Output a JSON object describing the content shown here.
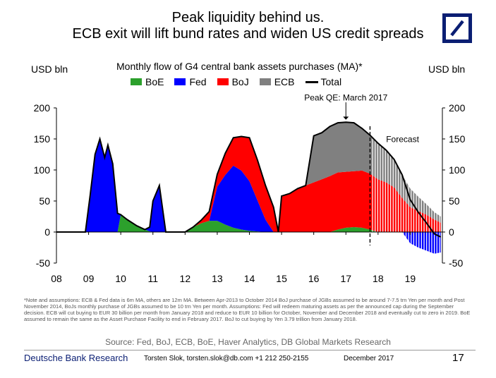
{
  "header": {
    "title_line1": "Peak liquidity behind us.",
    "title_line2": "ECB exit will lift bund rates and widen US credit spreads"
  },
  "brand": {
    "logo_color": "#0a1e73"
  },
  "chart_data": {
    "type": "area",
    "title": "Monthly flow of G4 central bank assets purchases (MA)*",
    "ylabel_left": "USD bln",
    "ylabel_right": "USD bln",
    "x_ticks": [
      "08",
      "09",
      "10",
      "11",
      "12",
      "13",
      "14",
      "15",
      "16",
      "17",
      "18",
      "19"
    ],
    "ylim": [
      -50,
      200
    ],
    "y_ticks": [
      200,
      150,
      100,
      50,
      0,
      -50
    ],
    "legend_placement": "top",
    "colors": {
      "BoE": "#2ca02c",
      "Fed": "#0000ff",
      "BoJ": "#ff0000",
      "ECB": "#808080",
      "Total": "#000000"
    },
    "x": [
      2008.0,
      2008.5,
      2008.9,
      2009.05,
      2009.2,
      2009.35,
      2009.5,
      2009.6,
      2009.75,
      2009.9,
      2010.0,
      2010.05,
      2010.2,
      2010.5,
      2010.75,
      2010.9,
      2011.0,
      2011.2,
      2011.4,
      2011.5,
      2011.55,
      2011.6,
      2011.9,
      2012.0,
      2012.25,
      2012.5,
      2012.75,
      2013.0,
      2013.25,
      2013.5,
      2013.75,
      2014.0,
      2014.25,
      2014.5,
      2014.75,
      2014.9,
      2015.0,
      2015.25,
      2015.5,
      2015.75,
      2016.0,
      2016.25,
      2016.5,
      2016.75,
      2017.0,
      2017.25,
      2017.5,
      2017.75,
      2018.0,
      2018.25,
      2018.5,
      2018.75,
      2019.0,
      2019.25,
      2019.5,
      2019.75,
      2019.95
    ],
    "series": [
      {
        "name": "BoE",
        "values": [
          0,
          0,
          0,
          0,
          0,
          0,
          0,
          0,
          0,
          0,
          28,
          26,
          20,
          10,
          4,
          1,
          0,
          0,
          0,
          0,
          0,
          0,
          0,
          0,
          8,
          14,
          18,
          18,
          12,
          7,
          4,
          2,
          1,
          0,
          0,
          0,
          0,
          0,
          0,
          0,
          0,
          0,
          0,
          4,
          7,
          8,
          7,
          4,
          0,
          0,
          0,
          0,
          0,
          0,
          0,
          0,
          0
        ]
      },
      {
        "name": "Fed",
        "values": [
          0,
          0,
          0,
          60,
          125,
          150,
          120,
          140,
          110,
          30,
          0,
          0,
          0,
          0,
          0,
          8,
          50,
          75,
          0,
          0,
          0,
          0,
          0,
          0,
          0,
          0,
          0,
          55,
          80,
          100,
          95,
          80,
          50,
          20,
          0,
          0,
          0,
          0,
          0,
          0,
          0,
          0,
          0,
          0,
          0,
          0,
          0,
          0,
          0,
          0,
          0,
          0,
          -18,
          -25,
          -30,
          -35,
          -33
        ]
      },
      {
        "name": "BoJ",
        "values": [
          0,
          0,
          0,
          0,
          0,
          0,
          0,
          0,
          0,
          0,
          0,
          0,
          0,
          0,
          0,
          0,
          0,
          0,
          0,
          0,
          0,
          0,
          0,
          0,
          0,
          5,
          15,
          20,
          35,
          45,
          55,
          70,
          65,
          55,
          40,
          0,
          58,
          62,
          70,
          75,
          80,
          85,
          90,
          92,
          90,
          90,
          92,
          90,
          85,
          80,
          72,
          55,
          40,
          34,
          28,
          20,
          15
        ]
      },
      {
        "name": "ECB",
        "values": [
          0,
          0,
          0,
          0,
          0,
          0,
          0,
          0,
          0,
          0,
          0,
          0,
          0,
          0,
          0,
          0,
          0,
          0,
          0,
          0,
          0,
          0,
          0,
          0,
          0,
          0,
          0,
          0,
          0,
          0,
          0,
          0,
          0,
          0,
          0,
          0,
          0,
          0,
          0,
          0,
          75,
          75,
          80,
          80,
          80,
          78,
          68,
          62,
          58,
          52,
          45,
          37,
          30,
          23,
          17,
          12,
          10
        ]
      },
      {
        "name": "Total",
        "values": [
          0,
          0,
          0,
          60,
          125,
          150,
          120,
          140,
          110,
          30,
          28,
          26,
          20,
          10,
          4,
          8,
          50,
          75,
          0,
          0,
          0,
          0,
          0,
          0,
          8,
          19,
          33,
          93,
          127,
          152,
          154,
          152,
          116,
          75,
          40,
          0,
          58,
          62,
          70,
          75,
          155,
          160,
          170,
          176,
          177,
          176,
          167,
          156,
          143,
          132,
          117,
          92,
          52,
          32,
          15,
          -3,
          -8
        ]
      }
    ],
    "annotations": {
      "peak": "Peak QE: March 2017",
      "forecast": "Forecast",
      "forecast_start": 2017.75
    }
  },
  "legend": [
    {
      "label": "BoE"
    },
    {
      "label": "Fed"
    },
    {
      "label": "BoJ"
    },
    {
      "label": "ECB"
    },
    {
      "label": "Total"
    }
  ],
  "note": "*Note and assumptions: ECB & Fed data is 6m MA, others are 12m MA. Between Apr-2013 to October 2014 BoJ purchase of JGBs assumed to be around 7-7.5 trn Yen per month and Post November 2014, BoJs monthly purchase of JGBs assumed to be 10 trn Yen per month. Assumptions: Fed will redeem maturing assets as per the announced cap during the September decision. ECB will cut buying to EUR 30 billion per month from January 2018 and reduce to EUR 10 billion for October, November and December 2018 and eventually cut to zero in 2019. BoE assumed to remain the same as the Asset Purchase Facility to end in February 2017. BoJ to cut buying by Yen 3.79 trillion from January 2018.",
  "source": "Source: Fed, BoJ, ECB, BoE, Haver Analytics, DB Global Markets Research",
  "footer": {
    "brand": "Deutsche Bank Research",
    "author": "Torsten Slok, torsten.slok@db.com  +1 212 250-2155",
    "date": "December 2017",
    "page": "17"
  }
}
